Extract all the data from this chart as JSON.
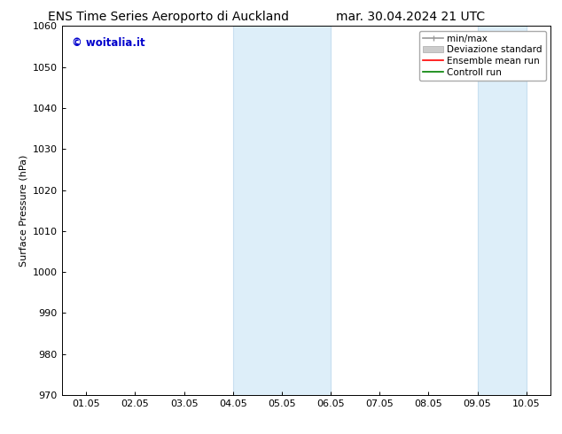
{
  "title_left": "ENS Time Series Aeroporto di Auckland",
  "title_right": "mar. 30.04.2024 21 UTC",
  "ylabel": "Surface Pressure (hPa)",
  "ylim": [
    970,
    1060
  ],
  "yticks": [
    970,
    980,
    990,
    1000,
    1010,
    1020,
    1030,
    1040,
    1050,
    1060
  ],
  "xticks_labels": [
    "01.05",
    "02.05",
    "03.05",
    "04.05",
    "05.05",
    "06.05",
    "07.05",
    "08.05",
    "09.05",
    "10.05"
  ],
  "xticks_pos": [
    0,
    1,
    2,
    3,
    4,
    5,
    6,
    7,
    8,
    9
  ],
  "xlim": [
    -0.5,
    9.5
  ],
  "shaded_regions": [
    {
      "xstart": 3,
      "xend": 5,
      "color": "#ddeef9"
    },
    {
      "xstart": 8,
      "xend": 9,
      "color": "#ddeef9"
    }
  ],
  "shaded_borders_color": "#c8dff0",
  "watermark_text": "© woitalia.it",
  "watermark_color": "#0000cc",
  "background_color": "#ffffff",
  "title_fontsize": 10,
  "axis_fontsize": 8,
  "tick_fontsize": 8,
  "legend_fontsize": 7.5
}
